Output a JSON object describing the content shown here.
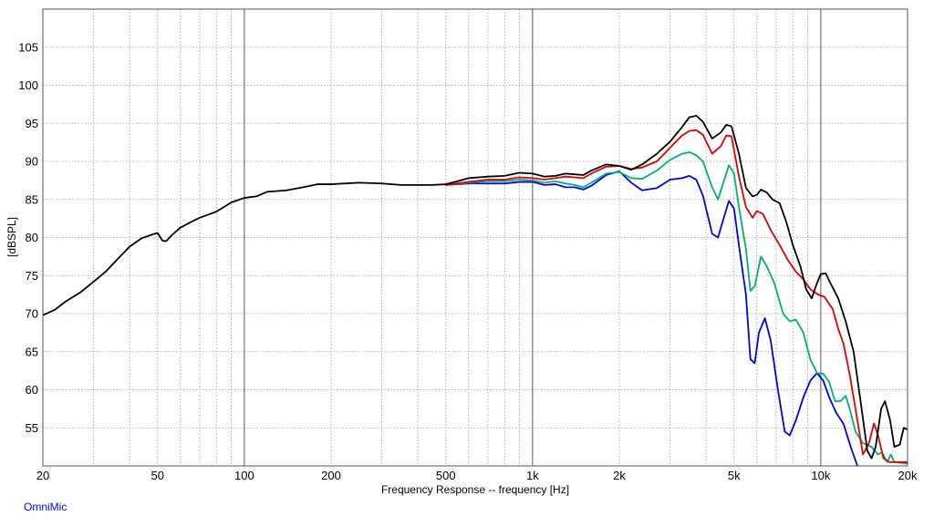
{
  "brand": "OmniMic",
  "chart_data": {
    "type": "line",
    "title": "",
    "xlabel": "Frequency Response -- frequency [Hz]",
    "ylabel": "[dBSPL]",
    "x_scale": "log",
    "xlim": [
      20,
      20000
    ],
    "ylim": [
      50,
      110
    ],
    "x_ticks": [
      {
        "value": 20,
        "label": "20"
      },
      {
        "value": 50,
        "label": "50"
      },
      {
        "value": 100,
        "label": "100"
      },
      {
        "value": 200,
        "label": "200"
      },
      {
        "value": 500,
        "label": "500"
      },
      {
        "value": 1000,
        "label": "1k"
      },
      {
        "value": 2000,
        "label": "2k"
      },
      {
        "value": 5000,
        "label": "5k"
      },
      {
        "value": 10000,
        "label": "10k"
      },
      {
        "value": 20000,
        "label": "20k"
      }
    ],
    "y_ticks": [
      55,
      60,
      65,
      70,
      75,
      80,
      85,
      90,
      95,
      100,
      105
    ],
    "grid": true,
    "series": [
      {
        "color": "#000000",
        "points": [
          [
            20,
            69.8
          ],
          [
            22,
            70.5
          ],
          [
            24,
            71.6
          ],
          [
            27,
            72.8
          ],
          [
            30,
            74.2
          ],
          [
            33,
            75.5
          ],
          [
            36,
            77.0
          ],
          [
            40,
            78.8
          ],
          [
            44,
            79.9
          ],
          [
            48,
            80.4
          ],
          [
            50,
            80.6
          ],
          [
            52,
            79.6
          ],
          [
            53.5,
            79.5
          ],
          [
            56,
            80.3
          ],
          [
            60,
            81.3
          ],
          [
            65,
            82.0
          ],
          [
            70,
            82.6
          ],
          [
            80,
            83.4
          ],
          [
            90,
            84.6
          ],
          [
            100,
            85.2
          ],
          [
            110,
            85.4
          ],
          [
            120,
            86.0
          ],
          [
            140,
            86.2
          ],
          [
            160,
            86.6
          ],
          [
            180,
            87.0
          ],
          [
            200,
            87.0
          ],
          [
            250,
            87.2
          ],
          [
            300,
            87.1
          ],
          [
            350,
            86.9
          ],
          [
            400,
            86.9
          ],
          [
            450,
            86.9
          ],
          [
            500,
            87.0
          ],
          [
            550,
            87.4
          ],
          [
            600,
            87.8
          ],
          [
            700,
            88.0
          ],
          [
            800,
            88.1
          ],
          [
            900,
            88.5
          ],
          [
            1000,
            88.4
          ],
          [
            1100,
            88.0
          ],
          [
            1200,
            88.1
          ],
          [
            1300,
            88.4
          ],
          [
            1400,
            88.3
          ],
          [
            1500,
            88.2
          ],
          [
            1600,
            88.8
          ],
          [
            1800,
            89.6
          ],
          [
            2000,
            89.4
          ],
          [
            2200,
            88.9
          ],
          [
            2400,
            89.6
          ],
          [
            2700,
            91.0
          ],
          [
            3000,
            92.6
          ],
          [
            3300,
            94.5
          ],
          [
            3500,
            95.8
          ],
          [
            3700,
            96.0
          ],
          [
            3900,
            95.2
          ],
          [
            4200,
            93.0
          ],
          [
            4500,
            93.8
          ],
          [
            4700,
            94.8
          ],
          [
            4900,
            94.6
          ],
          [
            5200,
            91.0
          ],
          [
            5500,
            86.5
          ],
          [
            5800,
            85.4
          ],
          [
            6000,
            85.6
          ],
          [
            6200,
            86.3
          ],
          [
            6500,
            85.9
          ],
          [
            6800,
            85.0
          ],
          [
            7200,
            84.5
          ],
          [
            7600,
            82.0
          ],
          [
            8000,
            79.0
          ],
          [
            8500,
            76.2
          ],
          [
            8900,
            73.2
          ],
          [
            9300,
            72.0
          ],
          [
            9700,
            74.0
          ],
          [
            10000,
            75.2
          ],
          [
            10400,
            75.3
          ],
          [
            10800,
            74.0
          ],
          [
            11500,
            72.0
          ],
          [
            12200,
            69.0
          ],
          [
            13000,
            65.0
          ],
          [
            13800,
            58.0
          ],
          [
            14500,
            52.0
          ],
          [
            15000,
            51.0
          ],
          [
            15500,
            52.5
          ],
          [
            16200,
            57.5
          ],
          [
            16700,
            58.5
          ],
          [
            17400,
            56.0
          ],
          [
            18000,
            52.5
          ],
          [
            18800,
            52.8
          ],
          [
            19400,
            55.0
          ],
          [
            20000,
            54.8
          ]
        ]
      },
      {
        "color": "#e00000",
        "points": [
          [
            500,
            86.9
          ],
          [
            600,
            87.3
          ],
          [
            700,
            87.6
          ],
          [
            800,
            87.6
          ],
          [
            900,
            87.9
          ],
          [
            1000,
            87.8
          ],
          [
            1100,
            87.6
          ],
          [
            1200,
            87.8
          ],
          [
            1300,
            88.0
          ],
          [
            1400,
            87.9
          ],
          [
            1500,
            87.8
          ],
          [
            1600,
            88.4
          ],
          [
            1800,
            89.3
          ],
          [
            2000,
            89.4
          ],
          [
            2200,
            89.0
          ],
          [
            2400,
            89.2
          ],
          [
            2700,
            90.0
          ],
          [
            3000,
            91.8
          ],
          [
            3300,
            93.4
          ],
          [
            3500,
            94.0
          ],
          [
            3700,
            94.1
          ],
          [
            3900,
            93.5
          ],
          [
            4200,
            91.0
          ],
          [
            4500,
            92.0
          ],
          [
            4700,
            93.4
          ],
          [
            4900,
            93.3
          ],
          [
            5200,
            88.0
          ],
          [
            5500,
            84.0
          ],
          [
            5800,
            82.6
          ],
          [
            6000,
            83.5
          ],
          [
            6300,
            83.1
          ],
          [
            6700,
            81.0
          ],
          [
            7200,
            79.0
          ],
          [
            7700,
            77.0
          ],
          [
            8200,
            75.5
          ],
          [
            8700,
            74.5
          ],
          [
            9200,
            73.2
          ],
          [
            9800,
            72.5
          ],
          [
            10300,
            72.2
          ],
          [
            11000,
            70.6
          ],
          [
            11500,
            68.0
          ],
          [
            12000,
            66.0
          ],
          [
            12600,
            62.0
          ],
          [
            13400,
            56.0
          ],
          [
            14000,
            51.5
          ],
          [
            14700,
            53.0
          ],
          [
            15300,
            55.6
          ],
          [
            15800,
            54.0
          ],
          [
            16500,
            51.0
          ],
          [
            17300,
            50.5
          ],
          [
            20000,
            50.5
          ]
        ]
      },
      {
        "color": "#00b078",
        "points": [
          [
            500,
            86.9
          ],
          [
            600,
            87.2
          ],
          [
            700,
            87.4
          ],
          [
            800,
            87.4
          ],
          [
            900,
            87.6
          ],
          [
            1000,
            87.5
          ],
          [
            1100,
            87.2
          ],
          [
            1200,
            87.4
          ],
          [
            1300,
            87.1
          ],
          [
            1400,
            86.9
          ],
          [
            1500,
            86.6
          ],
          [
            1600,
            87.2
          ],
          [
            1800,
            88.4
          ],
          [
            2000,
            88.6
          ],
          [
            2200,
            87.8
          ],
          [
            2400,
            87.7
          ],
          [
            2700,
            88.8
          ],
          [
            3000,
            90.2
          ],
          [
            3300,
            91.0
          ],
          [
            3500,
            91.2
          ],
          [
            3700,
            90.8
          ],
          [
            3900,
            90.0
          ],
          [
            4200,
            86.6
          ],
          [
            4400,
            85.0
          ],
          [
            4600,
            87.3
          ],
          [
            4800,
            89.5
          ],
          [
            5000,
            88.4
          ],
          [
            5200,
            84.0
          ],
          [
            5500,
            78.5
          ],
          [
            5700,
            73.0
          ],
          [
            5900,
            73.6
          ],
          [
            6200,
            77.5
          ],
          [
            6500,
            76.2
          ],
          [
            6900,
            74.0
          ],
          [
            7400,
            70.0
          ],
          [
            7800,
            69.0
          ],
          [
            8200,
            69.2
          ],
          [
            8700,
            67.5
          ],
          [
            9200,
            64.0
          ],
          [
            9700,
            62.2
          ],
          [
            10200,
            62.1
          ],
          [
            10700,
            61.0
          ],
          [
            11200,
            58.5
          ],
          [
            11700,
            58.5
          ],
          [
            12200,
            59.2
          ],
          [
            12600,
            57.5
          ],
          [
            13200,
            54.5
          ],
          [
            14000,
            53.0
          ],
          [
            15000,
            52.5
          ],
          [
            15800,
            51.5
          ],
          [
            16300,
            51.8
          ],
          [
            17000,
            50.5
          ],
          [
            17500,
            51.5
          ],
          [
            18000,
            50.5
          ],
          [
            20000,
            50.3
          ]
        ]
      },
      {
        "color": "#0000e0",
        "points": [
          [
            500,
            86.9
          ],
          [
            600,
            87.1
          ],
          [
            700,
            87.1
          ],
          [
            800,
            87.1
          ],
          [
            900,
            87.3
          ],
          [
            1000,
            87.3
          ],
          [
            1100,
            86.9
          ],
          [
            1200,
            87.0
          ],
          [
            1300,
            86.6
          ],
          [
            1400,
            86.6
          ],
          [
            1500,
            86.3
          ],
          [
            1600,
            86.8
          ],
          [
            1800,
            88.2
          ],
          [
            2000,
            88.7
          ],
          [
            2200,
            87.2
          ],
          [
            2400,
            86.2
          ],
          [
            2700,
            86.5
          ],
          [
            3000,
            87.6
          ],
          [
            3300,
            87.8
          ],
          [
            3500,
            88.1
          ],
          [
            3700,
            87.6
          ],
          [
            3900,
            85.5
          ],
          [
            4200,
            80.5
          ],
          [
            4400,
            80.0
          ],
          [
            4600,
            82.5
          ],
          [
            4800,
            84.8
          ],
          [
            5000,
            83.8
          ],
          [
            5200,
            79.0
          ],
          [
            5500,
            72.5
          ],
          [
            5700,
            64.0
          ],
          [
            5900,
            63.5
          ],
          [
            6100,
            67.5
          ],
          [
            6400,
            69.4
          ],
          [
            6700,
            66.5
          ],
          [
            7100,
            60.0
          ],
          [
            7500,
            54.5
          ],
          [
            7800,
            54.0
          ],
          [
            8200,
            56.0
          ],
          [
            8700,
            59.0
          ],
          [
            9200,
            61.2
          ],
          [
            9700,
            62.2
          ],
          [
            10200,
            61.2
          ],
          [
            10700,
            59.0
          ],
          [
            11300,
            57.0
          ],
          [
            12000,
            55.5
          ],
          [
            12700,
            52.5
          ],
          [
            13400,
            50.0
          ],
          [
            20000,
            49.0
          ]
        ]
      }
    ]
  }
}
